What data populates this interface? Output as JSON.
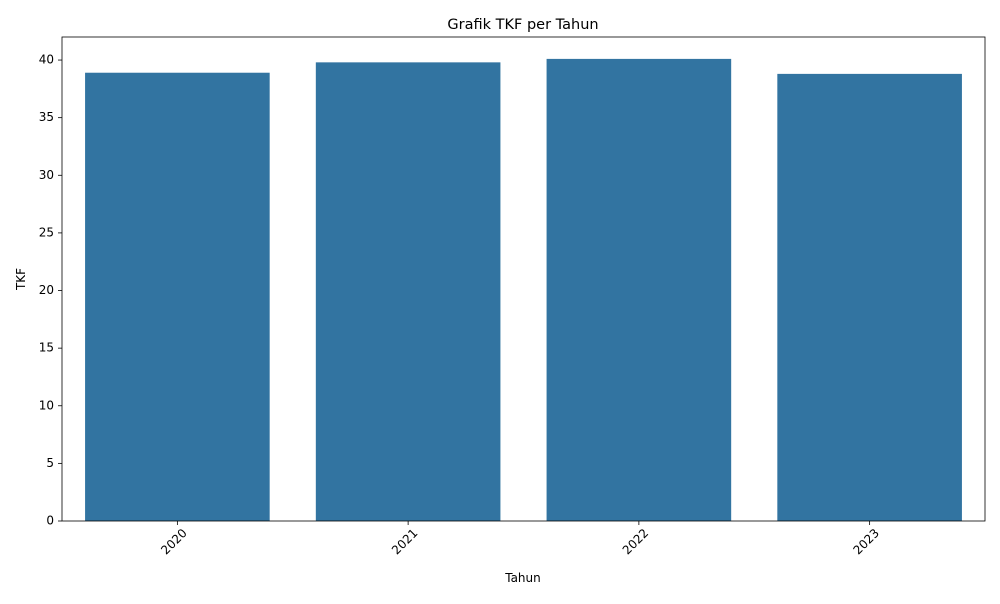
{
  "chart_data": {
    "type": "bar",
    "title": "Grafik TKF per Tahun",
    "xlabel": "Tahun",
    "ylabel": "TKF",
    "categories": [
      "2020",
      "2021",
      "2022",
      "2023"
    ],
    "values": [
      38.9,
      39.8,
      40.1,
      38.8
    ],
    "ylim": [
      0,
      42
    ],
    "yticks": [
      0,
      5,
      10,
      15,
      20,
      25,
      30,
      35,
      40
    ],
    "x_tick_rotation": 45,
    "grid": false,
    "legend": "none",
    "bar_color": "#3274a1"
  }
}
